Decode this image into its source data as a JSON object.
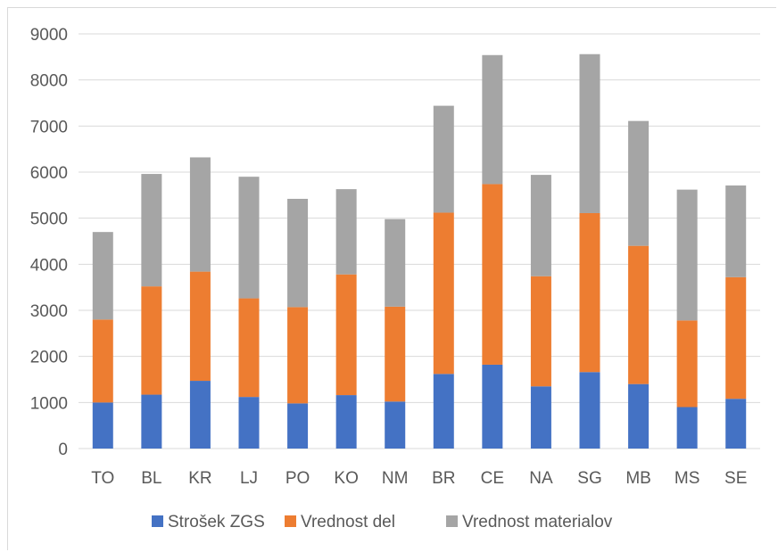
{
  "chart_data": {
    "type": "bar",
    "stacked": true,
    "categories": [
      "TO",
      "BL",
      "KR",
      "LJ",
      "PO",
      "KO",
      "NM",
      "BR",
      "CE",
      "NA",
      "SG",
      "MB",
      "MS",
      "SE"
    ],
    "series": [
      {
        "name": "Strošek ZGS",
        "color": "#4472c4",
        "values": [
          1000,
          1170,
          1470,
          1120,
          980,
          1160,
          1020,
          1620,
          1820,
          1350,
          1660,
          1400,
          900,
          1080
        ]
      },
      {
        "name": "Vrednost del",
        "color": "#ed7d31",
        "values": [
          1800,
          2350,
          2370,
          2140,
          2090,
          2620,
          2060,
          3500,
          3920,
          2390,
          3450,
          3000,
          1880,
          2640
        ]
      },
      {
        "name": "Vrednost materialov",
        "color": "#a5a5a5",
        "values": [
          1900,
          2440,
          2480,
          2640,
          2350,
          1850,
          1900,
          2320,
          2800,
          2200,
          3450,
          2710,
          2840,
          1990
        ]
      }
    ],
    "ylim": [
      0,
      9000
    ],
    "yticks": [
      0,
      1000,
      2000,
      3000,
      4000,
      5000,
      6000,
      7000,
      8000,
      9000
    ],
    "grid": true,
    "legend": "bottom"
  }
}
